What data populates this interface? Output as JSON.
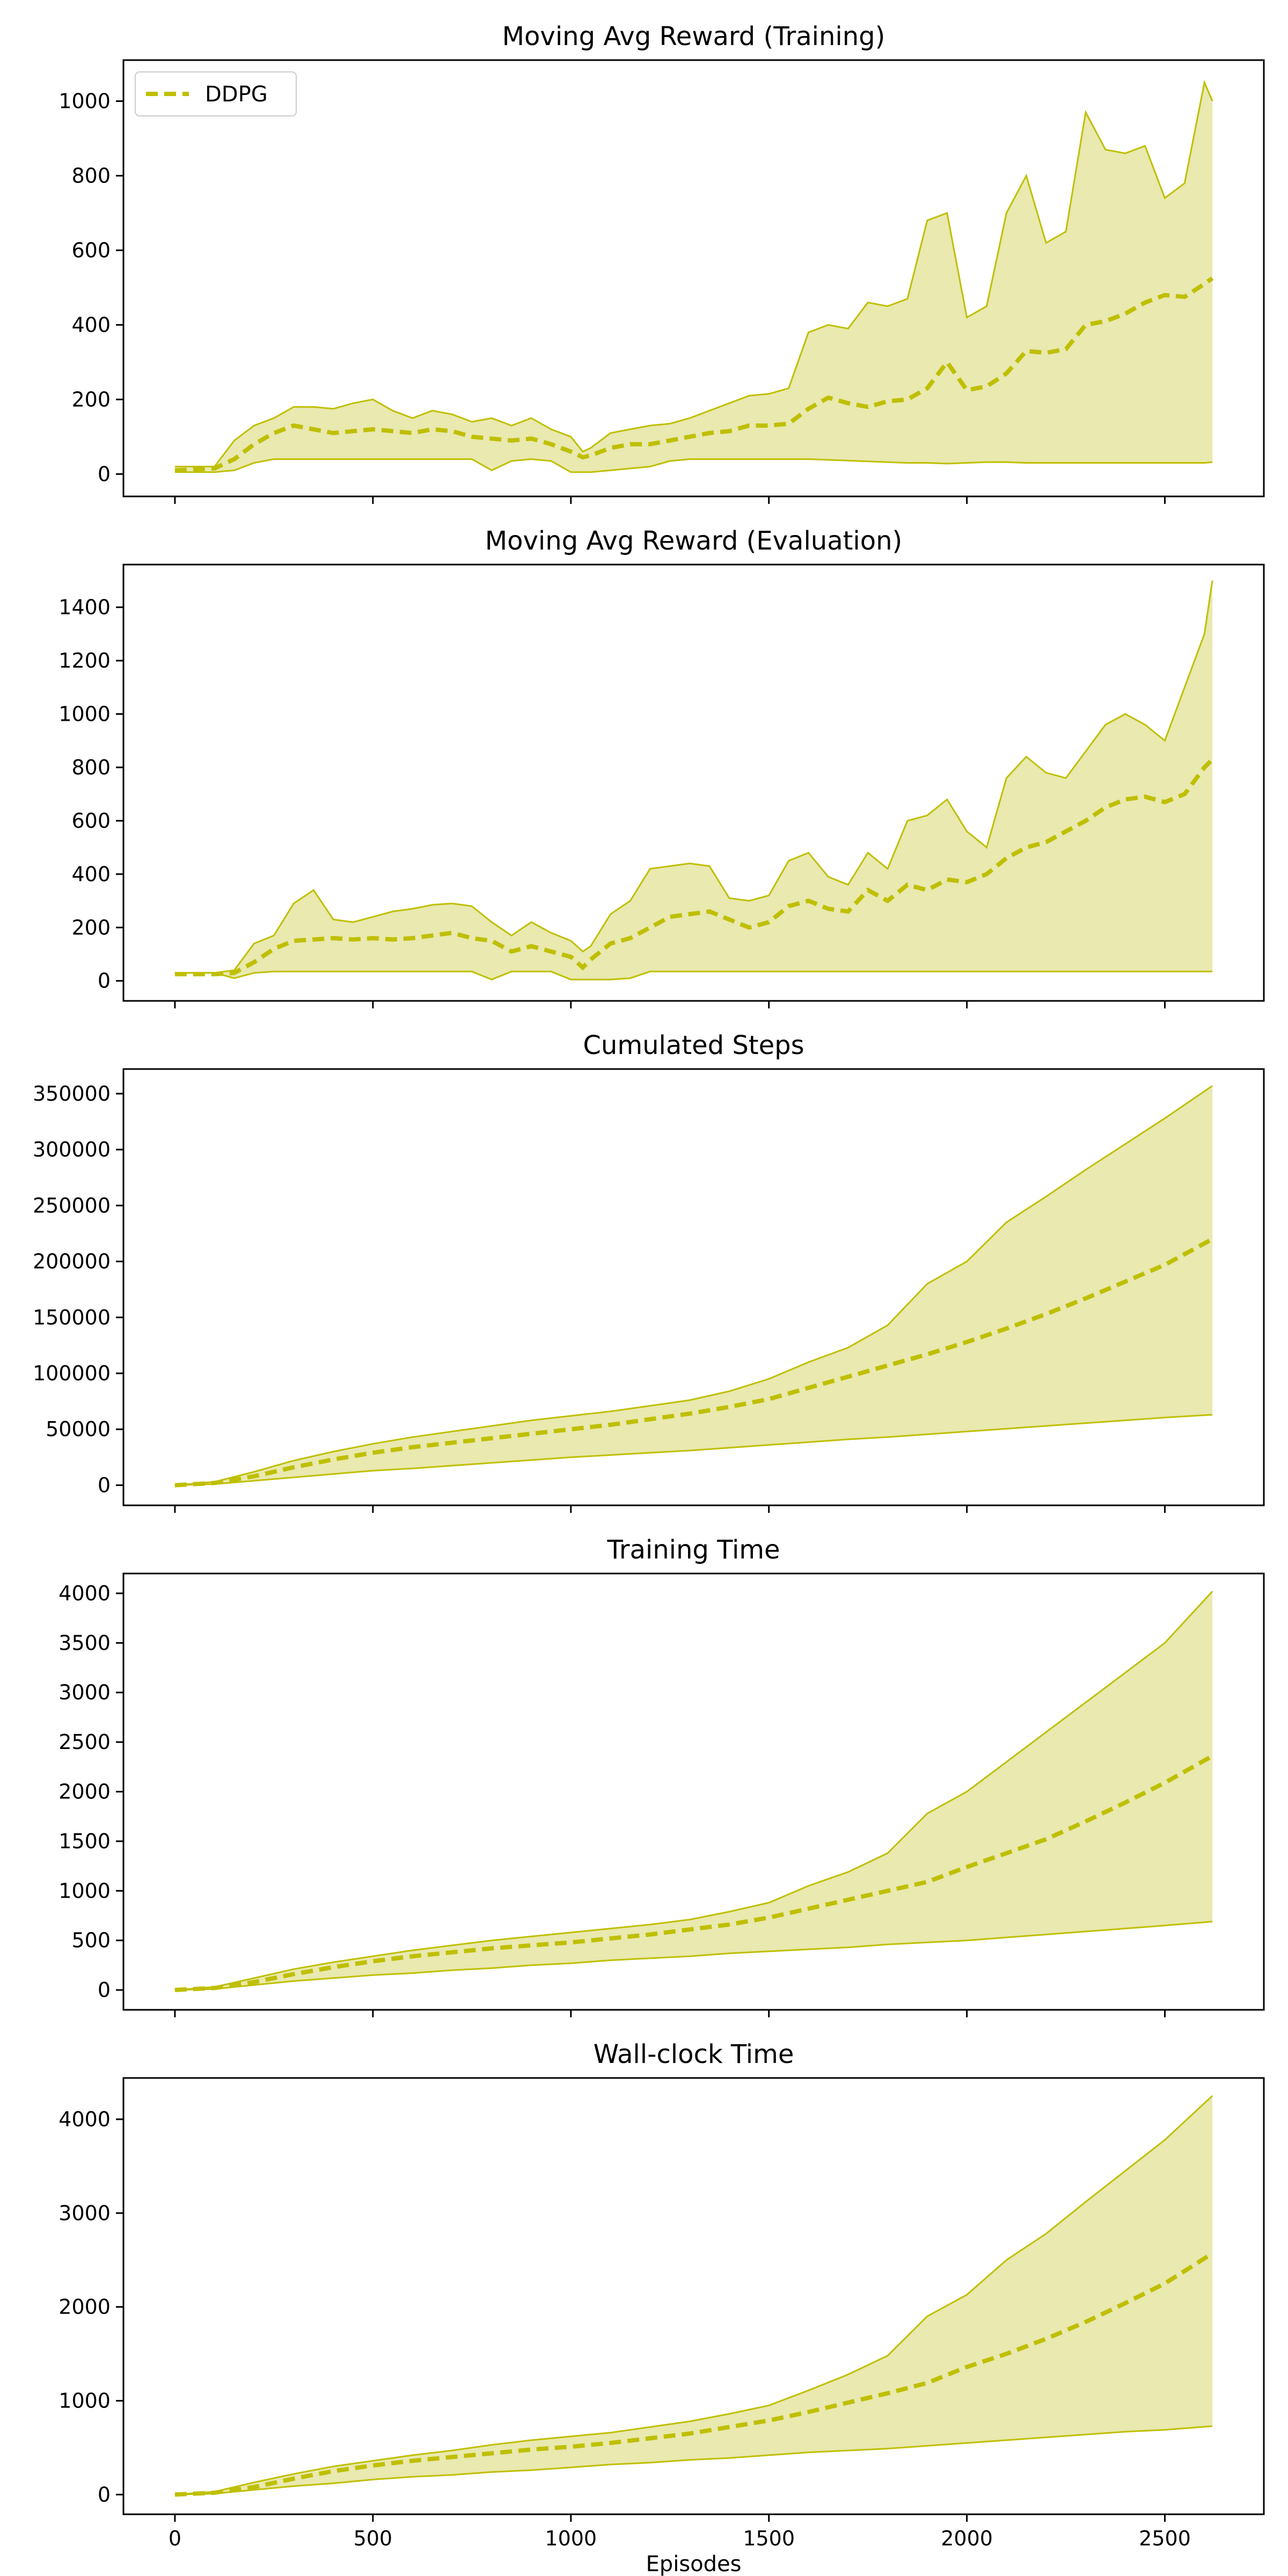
{
  "figure": {
    "xlabel": "Episodes",
    "series_color": "#bfbf00",
    "fill_color": "#e9e9b0"
  },
  "legend": {
    "label": "DDPG",
    "placement": "upper-left"
  },
  "chart_data": [
    {
      "type": "line",
      "title": "Moving Avg Reward (Training)",
      "xlabel": "",
      "ylabel": "",
      "xlim": [
        -130,
        2750
      ],
      "ylim": [
        -60,
        1110
      ],
      "xticks": [
        0,
        500,
        1000,
        1500,
        2000,
        2500
      ],
      "yticks": [
        0,
        200,
        400,
        600,
        800,
        1000
      ],
      "series": [
        {
          "name": "DDPG",
          "x": [
            0,
            100,
            150,
            200,
            250,
            300,
            350,
            400,
            450,
            500,
            550,
            600,
            650,
            700,
            750,
            800,
            850,
            900,
            950,
            1000,
            1030,
            1050,
            1100,
            1150,
            1200,
            1250,
            1300,
            1350,
            1400,
            1450,
            1500,
            1550,
            1600,
            1650,
            1700,
            1750,
            1800,
            1850,
            1900,
            1950,
            2000,
            2050,
            2100,
            2150,
            2200,
            2250,
            2300,
            2350,
            2400,
            2450,
            2500,
            2550,
            2600,
            2620
          ],
          "mean": [
            10,
            15,
            40,
            80,
            110,
            130,
            120,
            110,
            115,
            120,
            115,
            110,
            120,
            115,
            100,
            95,
            90,
            95,
            80,
            60,
            45,
            50,
            70,
            80,
            80,
            90,
            100,
            110,
            115,
            130,
            130,
            135,
            175,
            205,
            190,
            180,
            195,
            200,
            230,
            300,
            225,
            235,
            270,
            330,
            325,
            335,
            400,
            410,
            430,
            460,
            480,
            475,
            510,
            525
          ],
          "upper": [
            20,
            20,
            90,
            130,
            150,
            180,
            180,
            175,
            190,
            200,
            170,
            150,
            170,
            160,
            140,
            150,
            130,
            150,
            120,
            100,
            60,
            70,
            110,
            120,
            130,
            135,
            150,
            170,
            190,
            210,
            215,
            230,
            380,
            400,
            390,
            460,
            450,
            470,
            680,
            700,
            420,
            450,
            700,
            800,
            620,
            650,
            970,
            870,
            860,
            880,
            740,
            780,
            1050,
            1000
          ],
          "lower": [
            5,
            5,
            10,
            30,
            40,
            40,
            40,
            40,
            40,
            40,
            40,
            40,
            40,
            40,
            40,
            10,
            35,
            40,
            35,
            5,
            5,
            5,
            10,
            15,
            20,
            35,
            40,
            40,
            40,
            40,
            40,
            40,
            40,
            38,
            36,
            34,
            32,
            30,
            30,
            28,
            30,
            32,
            32,
            30,
            30,
            30,
            30,
            30,
            30,
            30,
            30,
            30,
            30,
            32
          ]
        }
      ]
    },
    {
      "type": "line",
      "title": "Moving Avg Reward (Evaluation)",
      "xlabel": "",
      "ylabel": "",
      "xlim": [
        -130,
        2750
      ],
      "ylim": [
        -75,
        1560
      ],
      "xticks": [
        0,
        500,
        1000,
        1500,
        2000,
        2500
      ],
      "yticks": [
        0,
        200,
        400,
        600,
        800,
        1000,
        1200,
        1400
      ],
      "series": [
        {
          "name": "DDPG",
          "x": [
            0,
            100,
            150,
            200,
            250,
            300,
            350,
            400,
            450,
            500,
            550,
            600,
            650,
            700,
            750,
            800,
            850,
            900,
            950,
            1000,
            1030,
            1050,
            1100,
            1150,
            1200,
            1250,
            1300,
            1350,
            1400,
            1450,
            1500,
            1550,
            1600,
            1650,
            1700,
            1750,
            1800,
            1850,
            1900,
            1950,
            2000,
            2050,
            2100,
            2150,
            2200,
            2250,
            2300,
            2350,
            2400,
            2450,
            2500,
            2550,
            2600,
            2620
          ],
          "mean": [
            25,
            25,
            30,
            70,
            120,
            150,
            155,
            160,
            155,
            160,
            155,
            160,
            170,
            180,
            160,
            150,
            110,
            130,
            110,
            90,
            50,
            80,
            140,
            160,
            200,
            240,
            250,
            260,
            230,
            200,
            220,
            280,
            300,
            270,
            260,
            340,
            300,
            360,
            340,
            380,
            370,
            400,
            460,
            500,
            520,
            560,
            600,
            650,
            680,
            690,
            670,
            700,
            800,
            830
          ],
          "upper": [
            30,
            30,
            40,
            140,
            170,
            290,
            340,
            230,
            220,
            240,
            260,
            270,
            285,
            290,
            280,
            220,
            170,
            220,
            180,
            150,
            110,
            130,
            250,
            300,
            420,
            430,
            440,
            430,
            310,
            300,
            320,
            450,
            480,
            390,
            360,
            480,
            420,
            600,
            620,
            680,
            560,
            500,
            760,
            840,
            780,
            760,
            860,
            960,
            1000,
            960,
            900,
            1100,
            1300,
            1500
          ],
          "lower": [
            30,
            30,
            10,
            30,
            35,
            35,
            35,
            35,
            35,
            35,
            35,
            35,
            35,
            35,
            35,
            5,
            35,
            35,
            35,
            5,
            5,
            5,
            5,
            10,
            35,
            35,
            35,
            35,
            35,
            35,
            35,
            35,
            35,
            35,
            35,
            35,
            35,
            35,
            35,
            35,
            35,
            35,
            35,
            35,
            35,
            35,
            35,
            35,
            35,
            35,
            35,
            35,
            35,
            35
          ]
        }
      ]
    },
    {
      "type": "line",
      "title": "Cumulated Steps",
      "xlabel": "",
      "ylabel": "",
      "xlim": [
        -130,
        2750
      ],
      "ylim": [
        -18000,
        372000
      ],
      "xticks": [
        0,
        500,
        1000,
        1500,
        2000,
        2500
      ],
      "yticks": [
        0,
        50000,
        100000,
        150000,
        200000,
        250000,
        300000,
        350000
      ],
      "series": [
        {
          "name": "DDPG",
          "x": [
            0,
            100,
            200,
            300,
            400,
            500,
            600,
            700,
            800,
            900,
            1000,
            1100,
            1200,
            1300,
            1400,
            1500,
            1600,
            1700,
            1800,
            1900,
            2000,
            2100,
            2200,
            2300,
            2400,
            2500,
            2620
          ],
          "mean": [
            0,
            2000,
            8000,
            16000,
            23000,
            29000,
            34000,
            38000,
            42000,
            46000,
            50000,
            54000,
            59000,
            64000,
            70000,
            77000,
            87000,
            97000,
            107000,
            117000,
            128000,
            140000,
            153000,
            167000,
            182000,
            197000,
            220000
          ],
          "upper": [
            0,
            3000,
            12000,
            22000,
            30000,
            37000,
            43000,
            48000,
            53000,
            58000,
            62000,
            66000,
            71000,
            76000,
            84000,
            95000,
            110000,
            123000,
            143000,
            180000,
            200000,
            235000,
            258000,
            282000,
            305000,
            328000,
            357000
          ],
          "lower": [
            0,
            1000,
            4000,
            7000,
            10000,
            13000,
            15000,
            17500,
            20000,
            22500,
            25000,
            27000,
            29000,
            31000,
            33500,
            36000,
            38500,
            41000,
            43000,
            45500,
            48000,
            50500,
            53000,
            55500,
            58000,
            60500,
            63000
          ]
        }
      ]
    },
    {
      "type": "line",
      "title": "Training Time",
      "xlabel": "",
      "ylabel": "",
      "xlim": [
        -130,
        2750
      ],
      "ylim": [
        -200,
        4200
      ],
      "xticks": [
        0,
        500,
        1000,
        1500,
        2000,
        2500
      ],
      "yticks": [
        0,
        500,
        1000,
        1500,
        2000,
        2500,
        3000,
        3500,
        4000
      ],
      "series": [
        {
          "name": "DDPG",
          "x": [
            0,
            100,
            200,
            300,
            400,
            500,
            600,
            700,
            800,
            900,
            1000,
            1100,
            1200,
            1300,
            1400,
            1500,
            1600,
            1700,
            1800,
            1900,
            2000,
            2100,
            2200,
            2300,
            2400,
            2500,
            2620
          ],
          "mean": [
            0,
            20,
            80,
            160,
            230,
            290,
            340,
            380,
            420,
            450,
            480,
            520,
            560,
            610,
            660,
            730,
            820,
            910,
            1000,
            1090,
            1240,
            1380,
            1520,
            1700,
            1890,
            2090,
            2360
          ],
          "upper": [
            0,
            30,
            120,
            210,
            280,
            340,
            400,
            450,
            500,
            540,
            580,
            620,
            660,
            710,
            790,
            880,
            1050,
            1190,
            1380,
            1780,
            2000,
            2300,
            2600,
            2900,
            3200,
            3500,
            4020
          ],
          "lower": [
            0,
            10,
            50,
            90,
            120,
            150,
            170,
            200,
            220,
            250,
            270,
            300,
            320,
            340,
            370,
            390,
            410,
            430,
            460,
            480,
            500,
            530,
            560,
            590,
            620,
            650,
            690
          ]
        }
      ]
    },
    {
      "type": "line",
      "title": "Wall-clock Time",
      "xlabel": "Episodes",
      "ylabel": "",
      "xlim": [
        -130,
        2750
      ],
      "ylim": [
        -210,
        4440
      ],
      "xticks": [
        0,
        500,
        1000,
        1500,
        2000,
        2500
      ],
      "yticks": [
        0,
        1000,
        2000,
        3000,
        4000
      ],
      "series": [
        {
          "name": "DDPG",
          "x": [
            0,
            100,
            200,
            300,
            400,
            500,
            600,
            700,
            800,
            900,
            1000,
            1100,
            1200,
            1300,
            1400,
            1500,
            1600,
            1700,
            1800,
            1900,
            2000,
            2100,
            2200,
            2300,
            2400,
            2500,
            2620
          ],
          "mean": [
            0,
            20,
            80,
            170,
            250,
            310,
            360,
            400,
            440,
            480,
            510,
            550,
            600,
            650,
            720,
            790,
            880,
            980,
            1080,
            1190,
            1360,
            1500,
            1660,
            1840,
            2040,
            2250,
            2570
          ],
          "upper": [
            0,
            30,
            130,
            220,
            300,
            360,
            420,
            470,
            530,
            580,
            620,
            660,
            720,
            780,
            860,
            950,
            1110,
            1280,
            1480,
            1900,
            2130,
            2500,
            2780,
            3120,
            3450,
            3780,
            4250
          ],
          "lower": [
            0,
            10,
            50,
            90,
            120,
            160,
            190,
            210,
            240,
            260,
            290,
            320,
            340,
            370,
            390,
            420,
            450,
            470,
            490,
            520,
            550,
            580,
            610,
            640,
            670,
            690,
            730
          ]
        }
      ]
    }
  ]
}
